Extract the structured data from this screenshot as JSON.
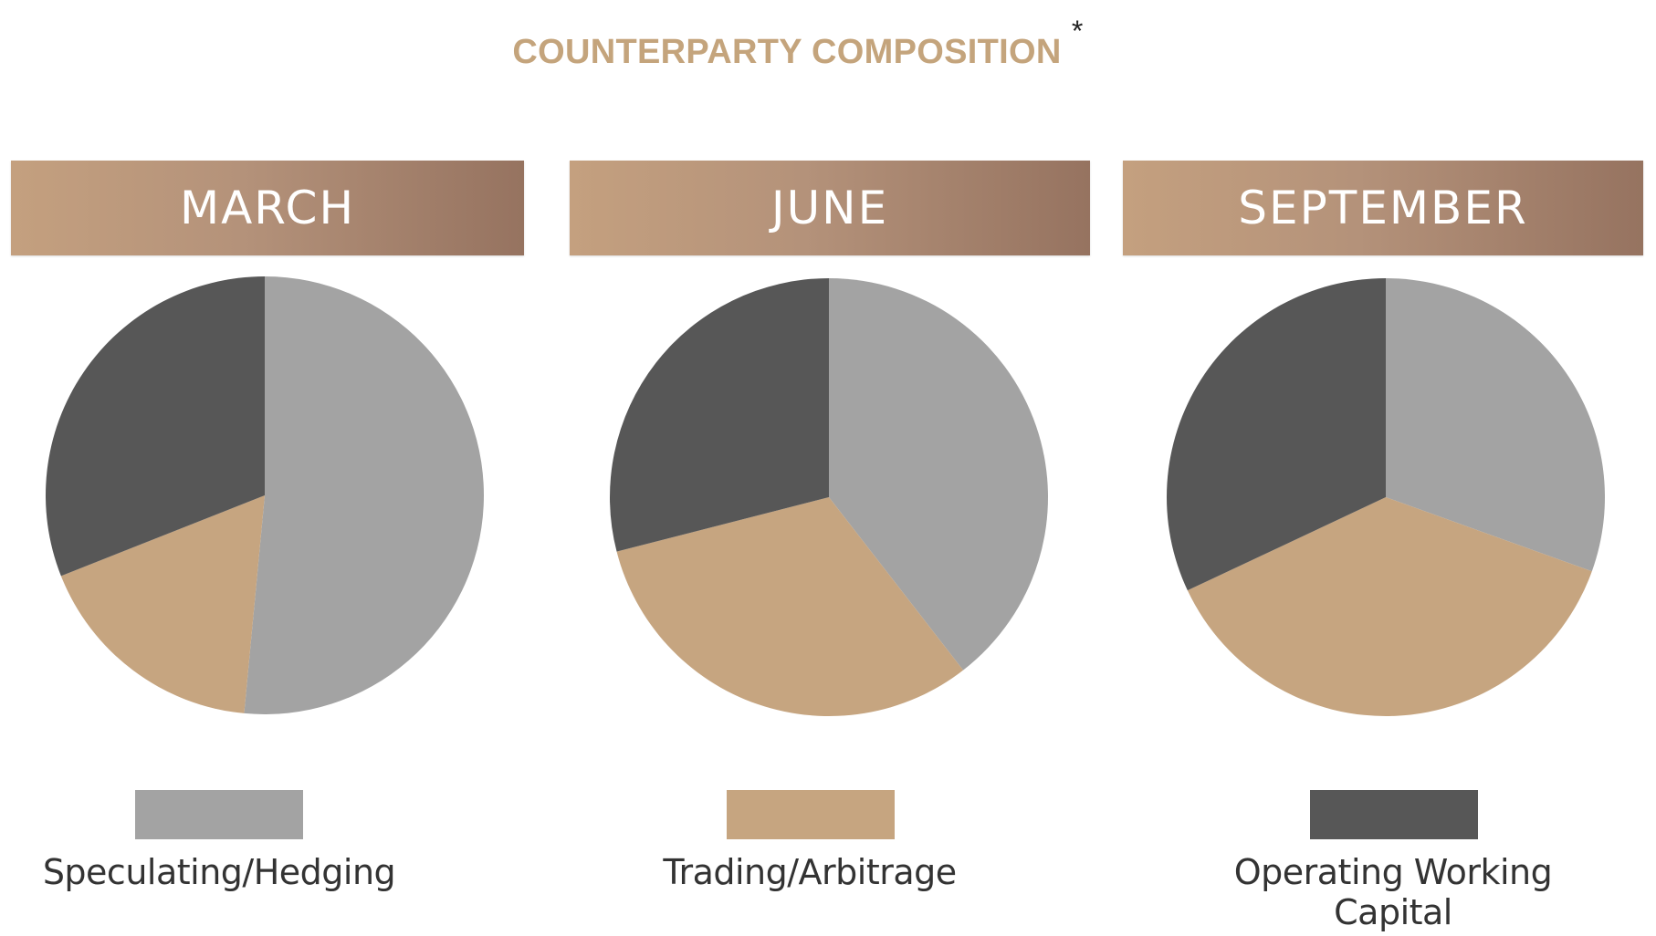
{
  "title": "COUNTERPARTY COMPOSITION",
  "title_mark": "*",
  "colors": {
    "title": "#c4a47c",
    "speculating": "#a3a3a3",
    "trading": "#c6a580",
    "operating": "#575757"
  },
  "chart_data": {
    "type": "pie",
    "legend": [
      {
        "name": "Speculating/Hedging",
        "color": "#a3a3a3"
      },
      {
        "name": "Trading/Arbitrage",
        "color": "#c6a580"
      },
      {
        "name": "Operating Working Capital",
        "color": "#575757"
      }
    ],
    "pies": [
      {
        "label": "MARCH",
        "slices": [
          {
            "name": "Speculating/Hedging",
            "value": 51.5
          },
          {
            "name": "Trading/Arbitrage",
            "value": 17.5
          },
          {
            "name": "Operating Working Capital",
            "value": 31
          }
        ]
      },
      {
        "label": "JUNE",
        "slices": [
          {
            "name": "Speculating/Hedging",
            "value": 39.5
          },
          {
            "name": "Trading/Arbitrage",
            "value": 31.5
          },
          {
            "name": "Operating Working Capital",
            "value": 29
          }
        ]
      },
      {
        "label": "SEPTEMBER",
        "slices": [
          {
            "name": "Speculating/Hedging",
            "value": 30.5
          },
          {
            "name": "Trading/Arbitrage",
            "value": 37.5
          },
          {
            "name": "Operating Working Capital",
            "value": 32
          }
        ]
      }
    ]
  }
}
